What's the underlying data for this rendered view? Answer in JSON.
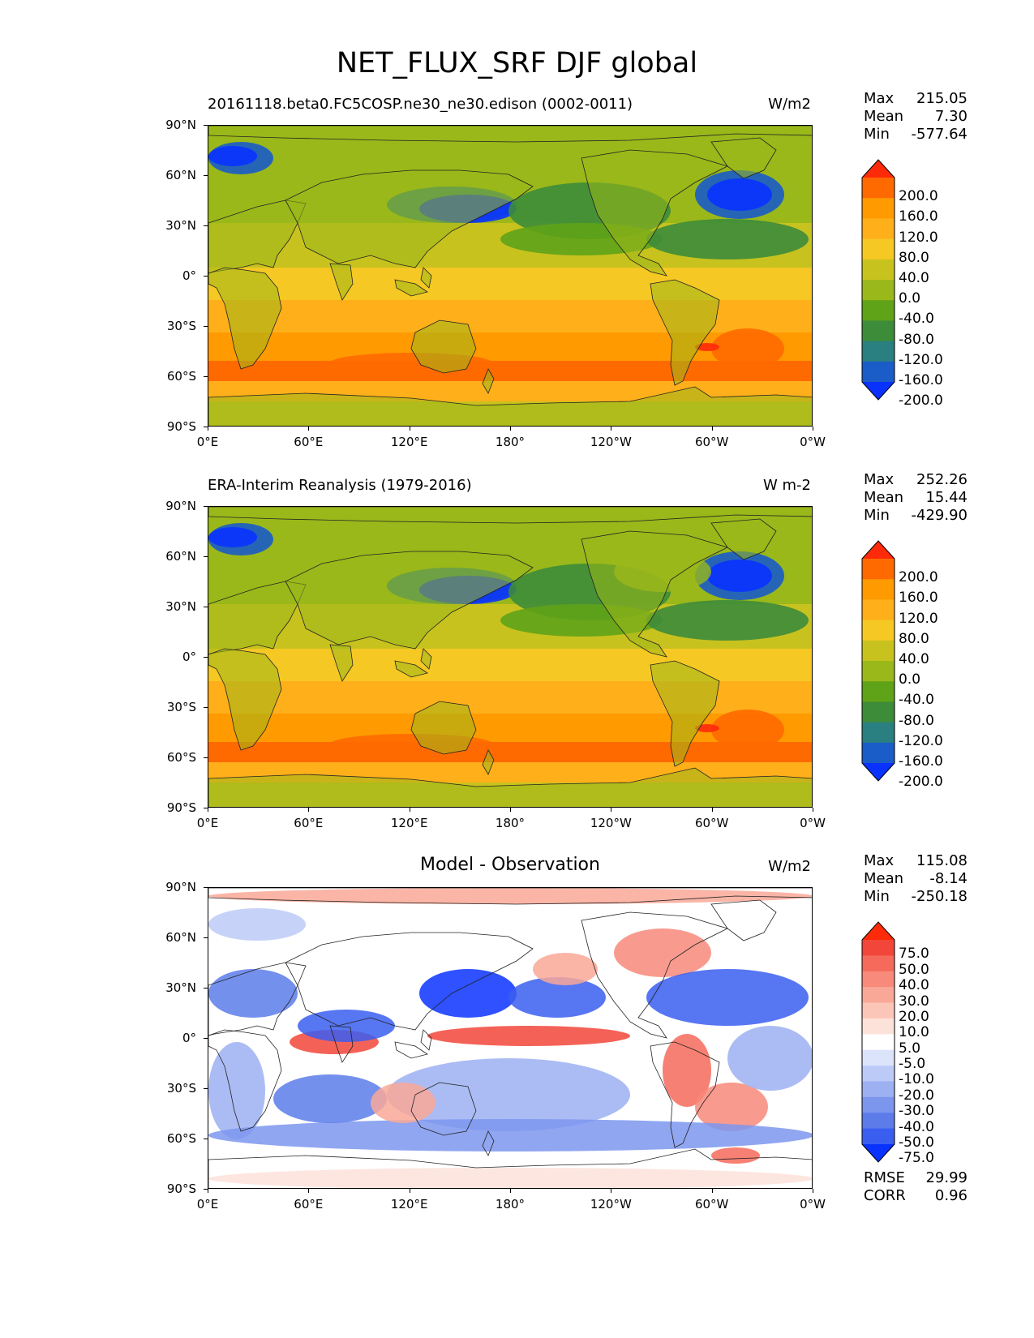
{
  "title": "NET_FLUX_SRF DJF global",
  "lat_ticks": [
    "90°N",
    "60°N",
    "30°N",
    "0°",
    "30°S",
    "60°S",
    "90°S"
  ],
  "lon_ticks": [
    "0°E",
    "60°E",
    "120°E",
    "180°",
    "120°W",
    "60°W",
    "0°W"
  ],
  "panels": [
    {
      "title": "20161118.beta0.FC5COSP.ne30_ne30.edison (0002-0011)",
      "title_centered": false,
      "units": "W/m2",
      "stats": {
        "max_label": "Max",
        "max": "215.05",
        "mean_label": "Mean",
        "mean": "7.30",
        "min_label": "Min",
        "min": "-577.64"
      },
      "colorbar": {
        "labels": [
          "200.0",
          "160.0",
          "120.0",
          "80.0",
          "40.0",
          "0.0",
          "-40.0",
          "-80.0",
          "-120.0",
          "-160.0",
          "-200.0"
        ],
        "colors": [
          "#ff2a0a",
          "#ff6a00",
          "#ff9a00",
          "#ffaf1a",
          "#f5c823",
          "#c8c21e",
          "#9ab81a",
          "#5fa318",
          "#3d8c3a",
          "#2a7f80",
          "#1a5cc8",
          "#0a32ff"
        ]
      },
      "map_style": "model"
    },
    {
      "title": "ERA-Interim Reanalysis (1979-2016)",
      "title_centered": false,
      "units": "W m-2",
      "stats": {
        "max_label": "Max",
        "max": "252.26",
        "mean_label": "Mean",
        "mean": "15.44",
        "min_label": "Min",
        "min": "-429.90"
      },
      "colorbar": {
        "labels": [
          "200.0",
          "160.0",
          "120.0",
          "80.0",
          "40.0",
          "0.0",
          "-40.0",
          "-80.0",
          "-120.0",
          "-160.0",
          "-200.0"
        ],
        "colors": [
          "#ff2a0a",
          "#ff6a00",
          "#ff9a00",
          "#ffaf1a",
          "#f5c823",
          "#c8c21e",
          "#9ab81a",
          "#5fa318",
          "#3d8c3a",
          "#2a7f80",
          "#1a5cc8",
          "#0a32ff"
        ]
      },
      "map_style": "obs"
    },
    {
      "title": "Model - Observation",
      "title_centered": true,
      "units": "W/m2",
      "stats": {
        "max_label": "Max",
        "max": "115.08",
        "mean_label": "Mean",
        "mean": "-8.14",
        "min_label": "Min",
        "min": "-250.18"
      },
      "colorbar": {
        "labels": [
          "75.0",
          "50.0",
          "40.0",
          "30.0",
          "20.0",
          "10.0",
          "5.0",
          "-5.0",
          "-10.0",
          "-20.0",
          "-30.0",
          "-40.0",
          "-50.0",
          "-75.0"
        ],
        "colors": [
          "#ff2a0a",
          "#f2463a",
          "#f56a5a",
          "#f78a7a",
          "#f9a898",
          "#fbc5b8",
          "#fde2da",
          "#ffffff",
          "#dce4fb",
          "#bccaf7",
          "#9cb0f2",
          "#7c96ee",
          "#5c7cea",
          "#3a5ef0",
          "#0a32ff"
        ]
      },
      "map_style": "diff",
      "metrics": {
        "rmse_label": "RMSE",
        "rmse": "29.99",
        "corr_label": "CORR",
        "corr": "0.96"
      }
    }
  ]
}
